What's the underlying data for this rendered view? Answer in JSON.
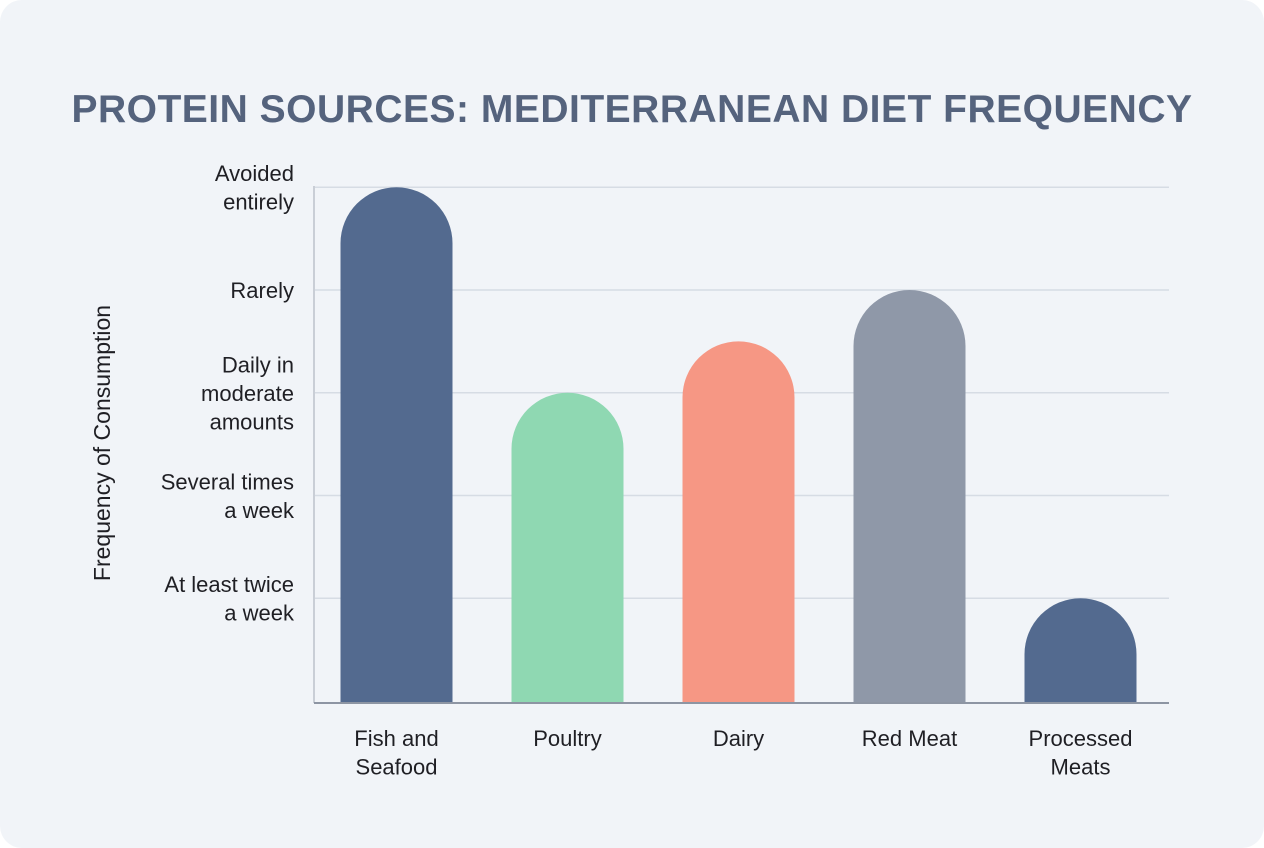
{
  "chart_data": {
    "type": "bar",
    "title": "PROTEIN SOURCES: MEDITERRANEAN DIET FREQUENCY",
    "xlabel": "",
    "ylabel": "Frequency of Consumption",
    "y_ticks": [
      {
        "value": 1,
        "label": [
          "At least twice",
          "a week"
        ]
      },
      {
        "value": 2,
        "label": [
          "Several times",
          "a week"
        ]
      },
      {
        "value": 3,
        "label": [
          "Daily in",
          "moderate",
          "amounts"
        ]
      },
      {
        "value": 4,
        "label": [
          "Rarely"
        ]
      },
      {
        "value": 5,
        "label": [
          "Avoided",
          "entirely"
        ]
      }
    ],
    "categories": [
      {
        "label": [
          "Fish and",
          "Seafood"
        ],
        "value": 5,
        "color": "#536a8f"
      },
      {
        "label": [
          "Poultry"
        ],
        "value": 3,
        "color": "#8fd8b2"
      },
      {
        "label": [
          "Dairy"
        ],
        "value": 3.5,
        "color": "#f69784"
      },
      {
        "label": [
          "Red Meat"
        ],
        "value": 4,
        "color": "#8f98a8"
      },
      {
        "label": [
          "Processed",
          "Meats"
        ],
        "value": 1,
        "color": "#536a8f"
      }
    ],
    "ylim": [
      0,
      5
    ],
    "grid": true,
    "legend": "none"
  }
}
